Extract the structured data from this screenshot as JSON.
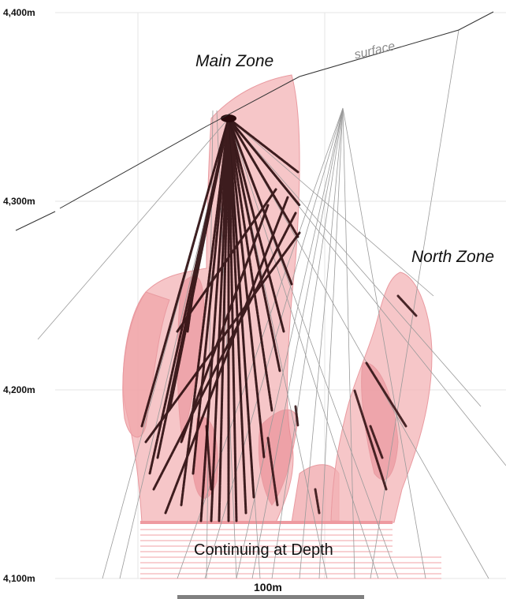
{
  "elevations": [
    "4,400m",
    "4,300m",
    "4,200m",
    "4,100m"
  ],
  "zones": {
    "main": "Main Zone",
    "north": "North Zone"
  },
  "surface_label": "surface",
  "depth_label": "Continuing at Depth",
  "scale_label": "100m",
  "colors": {
    "orebody_fill": "#f3b3b6",
    "orebody_dark": "#e88890",
    "drillhole": "#2a0a0c",
    "survey_line": "#9a9a9a",
    "surface_line": "#333333"
  }
}
